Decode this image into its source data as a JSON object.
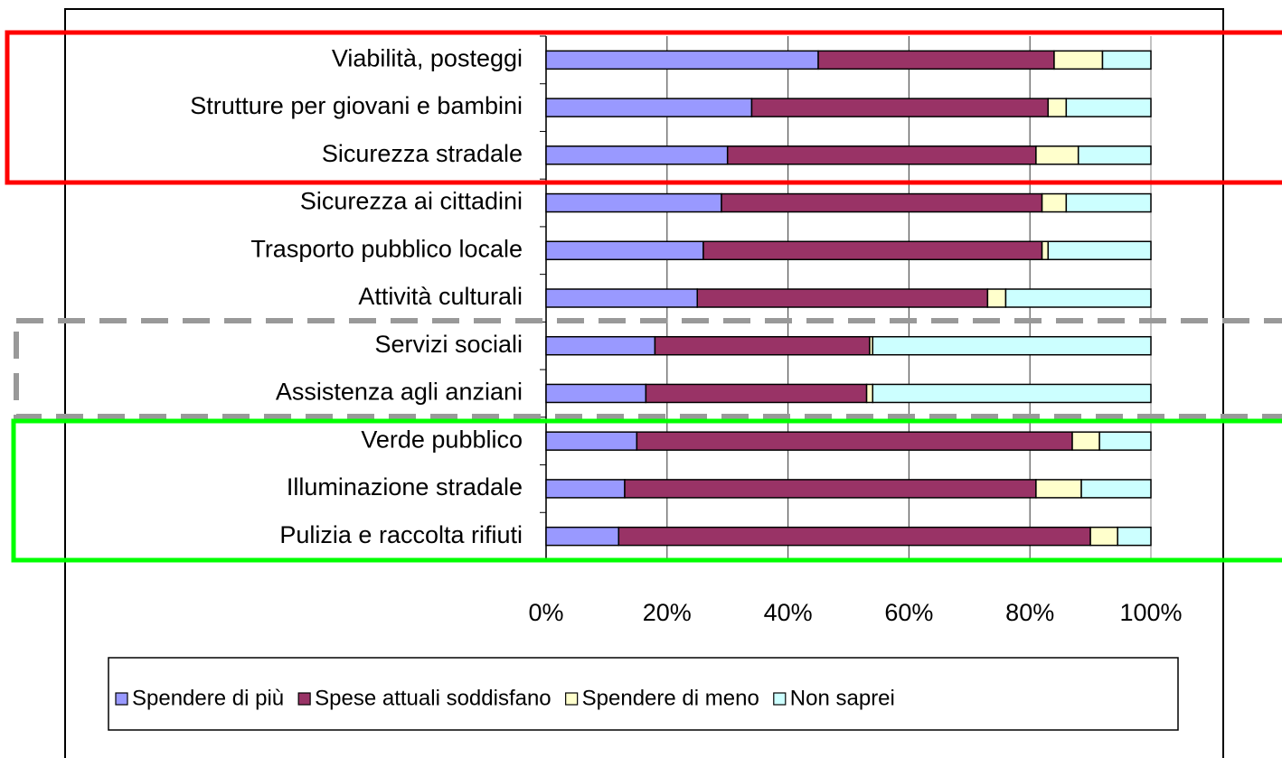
{
  "chart_data": {
    "type": "stacked_bar_horizontal",
    "categories": [
      "Viabilità, posteggi",
      "Strutture per giovani e bambini",
      "Sicurezza stradale",
      "Sicurezza ai cittadini",
      "Trasporto pubblico locale",
      "Attività culturali",
      "Servizi sociali",
      "Assistenza agli anziani",
      "Verde pubblico",
      "Illuminazione stradale",
      "Pulizia  e raccolta rifiuti"
    ],
    "series": [
      {
        "name": "Spendere di più",
        "color": "#9999ff",
        "values": [
          45,
          34,
          30,
          29,
          26,
          25,
          18,
          16.5,
          15,
          13,
          12
        ]
      },
      {
        "name": "Spese attuali soddisfano",
        "color": "#993366",
        "values": [
          39,
          49,
          51,
          53,
          56,
          48,
          35.5,
          36.5,
          72,
          68,
          78
        ]
      },
      {
        "name": "Spendere di meno",
        "color": "#ffffcc",
        "values": [
          8,
          3,
          7,
          4,
          1,
          3,
          0.5,
          1,
          4.5,
          7.5,
          4.5
        ]
      },
      {
        "name": "Non saprei",
        "color": "#ccffff",
        "values": [
          8,
          14,
          12,
          14,
          17,
          24,
          46,
          46,
          8.5,
          11.5,
          5.5
        ]
      }
    ],
    "xlim": [
      0,
      100
    ],
    "xticks": [
      {
        "value": 0,
        "label": "0%"
      },
      {
        "value": 20,
        "label": "20%"
      },
      {
        "value": 40,
        "label": "40%"
      },
      {
        "value": 60,
        "label": "60%"
      },
      {
        "value": 80,
        "label": "80%"
      },
      {
        "value": 100,
        "label": "100%"
      }
    ],
    "grid": true,
    "legend": "bottom"
  }
}
